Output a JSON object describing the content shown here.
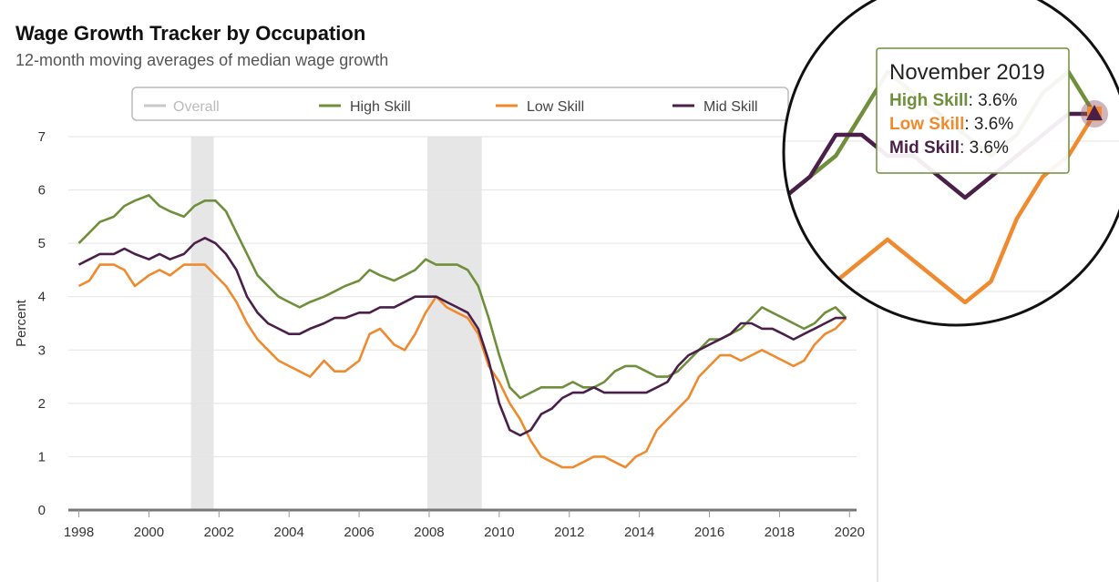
{
  "chart_data": {
    "type": "line",
    "title": "Wage Growth Tracker by Occupation",
    "subtitle": "12-month moving averages of median wage growth",
    "ylabel": "Percent",
    "ylim": [
      0,
      7
    ],
    "xlim": [
      1997.7,
      2020.2
    ],
    "grid": true,
    "legend_position": "top",
    "y_ticks": [
      "0",
      "1",
      "2",
      "3",
      "4",
      "5",
      "6",
      "7"
    ],
    "x_ticks": [
      "1998",
      "2000",
      "2002",
      "2004",
      "2006",
      "2008",
      "2010",
      "2012",
      "2014",
      "2016",
      "2018",
      "2020"
    ],
    "recessions": [
      [
        2001.2,
        2001.85
      ],
      [
        2007.95,
        2009.5
      ]
    ],
    "legend": [
      {
        "label": "Overall",
        "color": "#c8c8c8",
        "active": false
      },
      {
        "label": "High Skill",
        "color": "#6f8f3c",
        "active": true
      },
      {
        "label": "Low Skill",
        "color": "#ef8a2e",
        "active": true
      },
      {
        "label": "Mid Skill",
        "color": "#4a1f4a",
        "active": true
      }
    ],
    "series": [
      {
        "name": "High Skill",
        "color": "#6f8f3c",
        "x": [
          1998.0,
          1998.3,
          1998.6,
          1999.0,
          1999.3,
          1999.6,
          2000.0,
          2000.3,
          2000.6,
          2001.0,
          2001.3,
          2001.6,
          2001.9,
          2002.2,
          2002.5,
          2002.8,
          2003.1,
          2003.4,
          2003.7,
          2004.0,
          2004.3,
          2004.6,
          2005.0,
          2005.3,
          2005.6,
          2006.0,
          2006.3,
          2006.6,
          2007.0,
          2007.3,
          2007.6,
          2007.9,
          2008.2,
          2008.5,
          2008.8,
          2009.1,
          2009.4,
          2009.7,
          2010.0,
          2010.3,
          2010.6,
          2010.9,
          2011.2,
          2011.5,
          2011.8,
          2012.1,
          2012.4,
          2012.7,
          2013.0,
          2013.3,
          2013.6,
          2013.9,
          2014.2,
          2014.5,
          2014.8,
          2015.1,
          2015.4,
          2015.7,
          2016.0,
          2016.3,
          2016.6,
          2016.9,
          2017.2,
          2017.5,
          2017.8,
          2018.1,
          2018.4,
          2018.7,
          2019.0,
          2019.3,
          2019.6,
          2019.9
        ],
        "values": [
          5.0,
          5.2,
          5.4,
          5.5,
          5.7,
          5.8,
          5.9,
          5.7,
          5.6,
          5.5,
          5.7,
          5.8,
          5.8,
          5.6,
          5.2,
          4.8,
          4.4,
          4.2,
          4.0,
          3.9,
          3.8,
          3.9,
          4.0,
          4.1,
          4.2,
          4.3,
          4.5,
          4.4,
          4.3,
          4.4,
          4.5,
          4.7,
          4.6,
          4.6,
          4.6,
          4.5,
          4.2,
          3.6,
          2.9,
          2.3,
          2.1,
          2.2,
          2.3,
          2.3,
          2.3,
          2.4,
          2.3,
          2.3,
          2.4,
          2.6,
          2.7,
          2.7,
          2.6,
          2.5,
          2.5,
          2.6,
          2.8,
          3.0,
          3.2,
          3.2,
          3.3,
          3.4,
          3.6,
          3.8,
          3.7,
          3.6,
          3.5,
          3.4,
          3.5,
          3.7,
          3.8,
          3.6
        ]
      },
      {
        "name": "Low Skill",
        "color": "#ef8a2e",
        "x": [
          1998.0,
          1998.3,
          1998.6,
          1999.0,
          1999.3,
          1999.6,
          2000.0,
          2000.3,
          2000.6,
          2001.0,
          2001.3,
          2001.6,
          2001.9,
          2002.2,
          2002.5,
          2002.8,
          2003.1,
          2003.4,
          2003.7,
          2004.0,
          2004.3,
          2004.6,
          2005.0,
          2005.3,
          2005.6,
          2006.0,
          2006.3,
          2006.6,
          2007.0,
          2007.3,
          2007.6,
          2007.9,
          2008.2,
          2008.5,
          2008.8,
          2009.1,
          2009.4,
          2009.7,
          2010.0,
          2010.3,
          2010.6,
          2010.9,
          2011.2,
          2011.5,
          2011.8,
          2012.1,
          2012.4,
          2012.7,
          2013.0,
          2013.3,
          2013.6,
          2013.9,
          2014.2,
          2014.5,
          2014.8,
          2015.1,
          2015.4,
          2015.7,
          2016.0,
          2016.3,
          2016.6,
          2016.9,
          2017.2,
          2017.5,
          2017.8,
          2018.1,
          2018.4,
          2018.7,
          2019.0,
          2019.3,
          2019.6,
          2019.9
        ],
        "values": [
          4.2,
          4.3,
          4.6,
          4.6,
          4.5,
          4.2,
          4.4,
          4.5,
          4.4,
          4.6,
          4.6,
          4.6,
          4.4,
          4.2,
          3.9,
          3.5,
          3.2,
          3.0,
          2.8,
          2.7,
          2.6,
          2.5,
          2.8,
          2.6,
          2.6,
          2.8,
          3.3,
          3.4,
          3.1,
          3.0,
          3.3,
          3.7,
          4.0,
          3.8,
          3.7,
          3.6,
          3.3,
          2.7,
          2.4,
          2.0,
          1.7,
          1.3,
          1.0,
          0.9,
          0.8,
          0.8,
          0.9,
          1.0,
          1.0,
          0.9,
          0.8,
          1.0,
          1.1,
          1.5,
          1.7,
          1.9,
          2.1,
          2.5,
          2.7,
          2.9,
          2.9,
          2.8,
          2.9,
          3.0,
          2.9,
          2.8,
          2.7,
          2.8,
          3.1,
          3.3,
          3.4,
          3.6
        ]
      },
      {
        "name": "Mid Skill",
        "color": "#4a1f4a",
        "x": [
          1998.0,
          1998.3,
          1998.6,
          1999.0,
          1999.3,
          1999.6,
          2000.0,
          2000.3,
          2000.6,
          2001.0,
          2001.3,
          2001.6,
          2001.9,
          2002.2,
          2002.5,
          2002.8,
          2003.1,
          2003.4,
          2003.7,
          2004.0,
          2004.3,
          2004.6,
          2005.0,
          2005.3,
          2005.6,
          2006.0,
          2006.3,
          2006.6,
          2007.0,
          2007.3,
          2007.6,
          2007.9,
          2008.2,
          2008.5,
          2008.8,
          2009.1,
          2009.4,
          2009.7,
          2010.0,
          2010.3,
          2010.6,
          2010.9,
          2011.2,
          2011.5,
          2011.8,
          2012.1,
          2012.4,
          2012.7,
          2013.0,
          2013.3,
          2013.6,
          2013.9,
          2014.2,
          2014.5,
          2014.8,
          2015.1,
          2015.4,
          2015.7,
          2016.0,
          2016.3,
          2016.6,
          2016.9,
          2017.2,
          2017.5,
          2017.8,
          2018.1,
          2018.4,
          2018.7,
          2019.0,
          2019.3,
          2019.6,
          2019.9
        ],
        "values": [
          4.6,
          4.7,
          4.8,
          4.8,
          4.9,
          4.8,
          4.7,
          4.8,
          4.7,
          4.8,
          5.0,
          5.1,
          5.0,
          4.8,
          4.5,
          4.0,
          3.7,
          3.5,
          3.4,
          3.3,
          3.3,
          3.4,
          3.5,
          3.6,
          3.6,
          3.7,
          3.7,
          3.8,
          3.8,
          3.9,
          4.0,
          4.0,
          4.0,
          3.9,
          3.8,
          3.7,
          3.4,
          2.8,
          2.0,
          1.5,
          1.4,
          1.5,
          1.8,
          1.9,
          2.1,
          2.2,
          2.2,
          2.3,
          2.2,
          2.2,
          2.2,
          2.2,
          2.2,
          2.3,
          2.4,
          2.7,
          2.9,
          3.0,
          3.1,
          3.2,
          3.3,
          3.5,
          3.5,
          3.4,
          3.4,
          3.3,
          3.2,
          3.3,
          3.4,
          3.5,
          3.6,
          3.6
        ]
      }
    ],
    "tooltip": {
      "title": "November 2019",
      "items": [
        {
          "label": "High Skill",
          "value": ": 3.6%",
          "color": "#6f8f3c"
        },
        {
          "label": "Low Skill",
          "value": ": 3.6%",
          "color": "#ef8a2e"
        },
        {
          "label": "Mid Skill",
          "value": ": 3.6%",
          "color": "#4a1f4a"
        }
      ]
    }
  }
}
